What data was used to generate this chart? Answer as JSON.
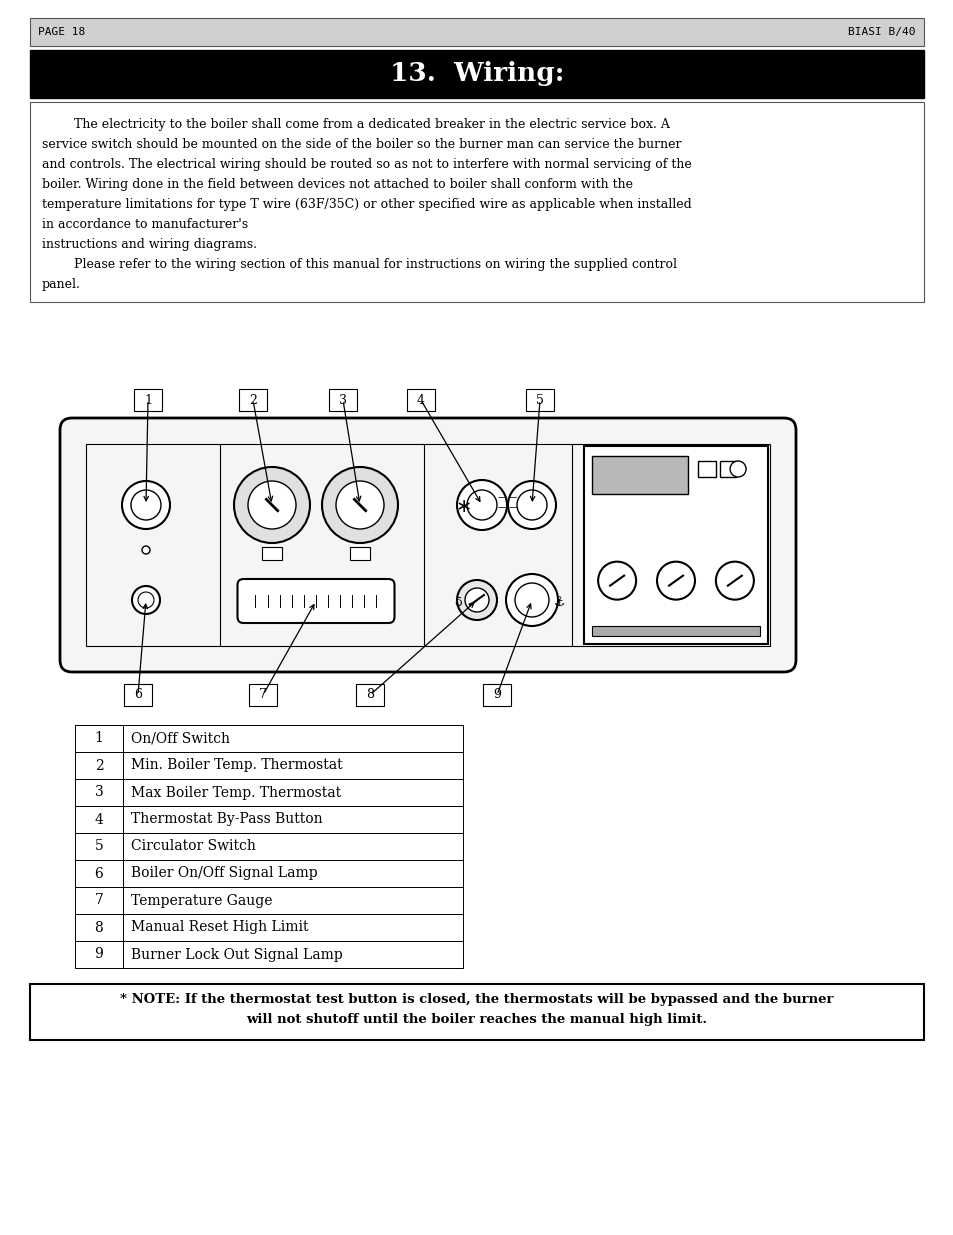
{
  "page_header_left": "PAGE 18",
  "page_header_right": "BIASI B/40",
  "title": "13.  Wiring:",
  "body_text": [
    "        The electricity to the boiler shall come from a dedicated breaker in the electric service box. A",
    "service switch should be mounted on the side of the boiler so the burner man can service the burner",
    "and controls. The electrical wiring should be routed so as not to interfere with normal servicing of the",
    "boiler. Wiring done in the field between devices not attached to boiler shall conform with the",
    "temperature limitations for type T wire (63F/35C) or other specified wire as applicable when installed",
    "in accordance to manufacturer's",
    "instructions and wiring diagrams.",
    "        Please refer to the wiring section of this manual for instructions on wiring the supplied control",
    "panel."
  ],
  "table_data": [
    [
      "1",
      "On/Off Switch"
    ],
    [
      "2",
      "Min. Boiler Temp. Thermostat"
    ],
    [
      "3",
      "Max Boiler Temp. Thermostat"
    ],
    [
      "4",
      "Thermostat By-Pass Button"
    ],
    [
      "5",
      "Circulator Switch"
    ],
    [
      "6",
      "Boiler On/Off Signal Lamp"
    ],
    [
      "7",
      "Temperature Gauge"
    ],
    [
      "8",
      "Manual Reset High Limit"
    ],
    [
      "9",
      "Burner Lock Out Signal Lamp"
    ]
  ],
  "note_text_line1": "* NOTE: If the thermostat test button is closed, the thermostats will be bypassed and the burner",
  "note_text_line2": "will not shutoff until the boiler reaches the manual high limit.",
  "bg_color": "#ffffff",
  "header_bg": "#cccccc",
  "title_bg": "#000000",
  "title_color": "#ffffff"
}
